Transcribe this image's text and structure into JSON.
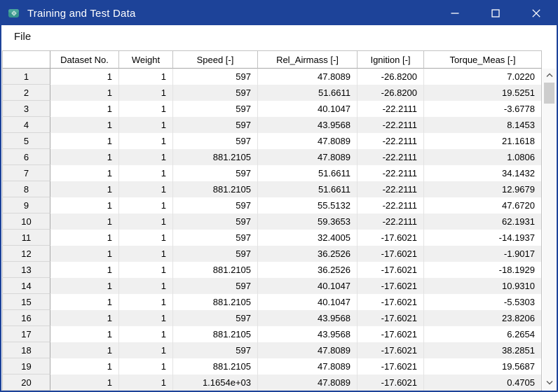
{
  "window": {
    "title": "Training and Test Data",
    "controls": [
      "minimize",
      "maximize",
      "close"
    ]
  },
  "colors": {
    "titlebar": "#1d4399",
    "row_stripe": "#f0f0f0",
    "row_header_bg": "#f0f0f0"
  },
  "menu": {
    "items": [
      "File"
    ]
  },
  "table": {
    "columns": [
      "Dataset No.",
      "Weight",
      "Speed [-]",
      "Rel_Airmass [-]",
      "Ignition [-]",
      "Torque_Meas [-]"
    ],
    "rows": [
      {
        "n": "1",
        "cells": [
          "1",
          "1",
          "597",
          "47.8089",
          "-26.8200",
          "7.0220"
        ]
      },
      {
        "n": "2",
        "cells": [
          "1",
          "1",
          "597",
          "51.6611",
          "-26.8200",
          "19.5251"
        ]
      },
      {
        "n": "3",
        "cells": [
          "1",
          "1",
          "597",
          "40.1047",
          "-22.2111",
          "-3.6778"
        ]
      },
      {
        "n": "4",
        "cells": [
          "1",
          "1",
          "597",
          "43.9568",
          "-22.2111",
          "8.1453"
        ]
      },
      {
        "n": "5",
        "cells": [
          "1",
          "1",
          "597",
          "47.8089",
          "-22.2111",
          "21.1618"
        ]
      },
      {
        "n": "6",
        "cells": [
          "1",
          "1",
          "881.2105",
          "47.8089",
          "-22.2111",
          "1.0806"
        ]
      },
      {
        "n": "7",
        "cells": [
          "1",
          "1",
          "597",
          "51.6611",
          "-22.2111",
          "34.1432"
        ]
      },
      {
        "n": "8",
        "cells": [
          "1",
          "1",
          "881.2105",
          "51.6611",
          "-22.2111",
          "12.9679"
        ]
      },
      {
        "n": "9",
        "cells": [
          "1",
          "1",
          "597",
          "55.5132",
          "-22.2111",
          "47.6720"
        ]
      },
      {
        "n": "10",
        "cells": [
          "1",
          "1",
          "597",
          "59.3653",
          "-22.2111",
          "62.1931"
        ]
      },
      {
        "n": "11",
        "cells": [
          "1",
          "1",
          "597",
          "32.4005",
          "-17.6021",
          "-14.1937"
        ]
      },
      {
        "n": "12",
        "cells": [
          "1",
          "1",
          "597",
          "36.2526",
          "-17.6021",
          "-1.9017"
        ]
      },
      {
        "n": "13",
        "cells": [
          "1",
          "1",
          "881.2105",
          "36.2526",
          "-17.6021",
          "-18.1929"
        ]
      },
      {
        "n": "14",
        "cells": [
          "1",
          "1",
          "597",
          "40.1047",
          "-17.6021",
          "10.9310"
        ]
      },
      {
        "n": "15",
        "cells": [
          "1",
          "1",
          "881.2105",
          "40.1047",
          "-17.6021",
          "-5.5303"
        ]
      },
      {
        "n": "16",
        "cells": [
          "1",
          "1",
          "597",
          "43.9568",
          "-17.6021",
          "23.8206"
        ]
      },
      {
        "n": "17",
        "cells": [
          "1",
          "1",
          "881.2105",
          "43.9568",
          "-17.6021",
          "6.2654"
        ]
      },
      {
        "n": "18",
        "cells": [
          "1",
          "1",
          "597",
          "47.8089",
          "-17.6021",
          "38.2851"
        ]
      },
      {
        "n": "19",
        "cells": [
          "1",
          "1",
          "881.2105",
          "47.8089",
          "-17.6021",
          "19.5687"
        ]
      },
      {
        "n": "20",
        "cells": [
          "1",
          "1",
          "1.1654e+03",
          "47.8089",
          "-17.6021",
          "0.4705"
        ]
      }
    ]
  }
}
